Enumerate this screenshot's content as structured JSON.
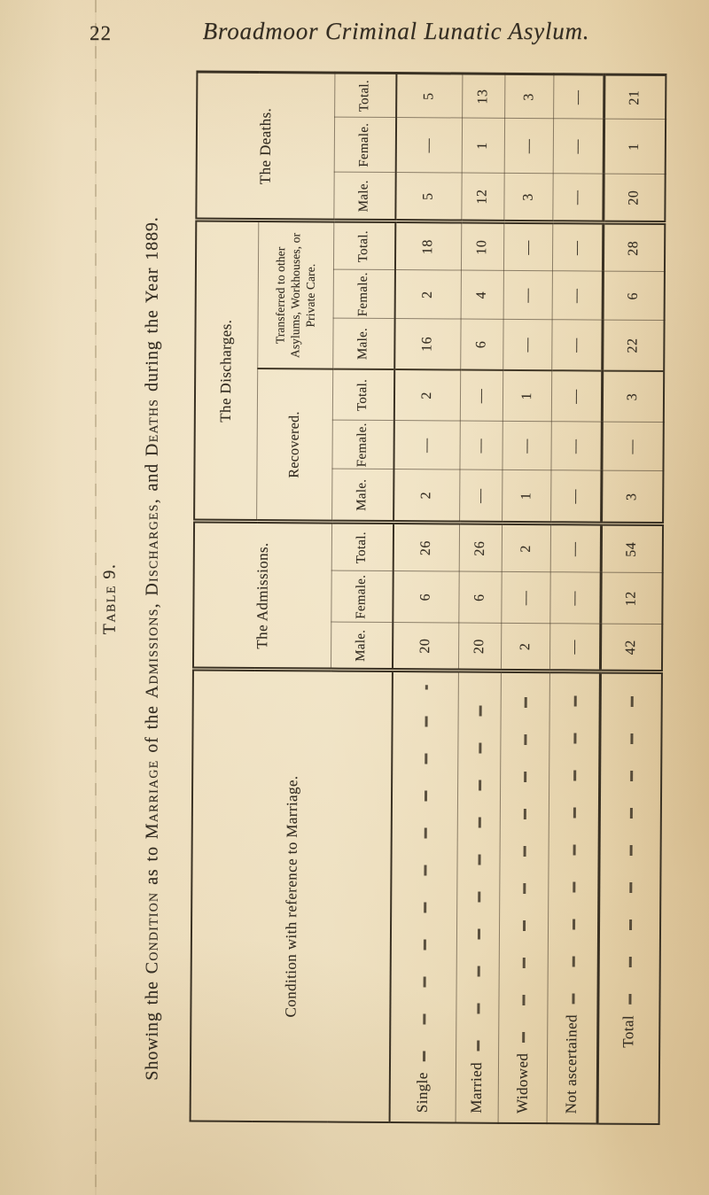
{
  "page": {
    "page_number": "22",
    "running_title": "Broadmoor Criminal Lunatic Asylum.",
    "side_label": "Table 9.",
    "caption_segments": [
      {
        "text": "Showing the ",
        "small_caps": false
      },
      {
        "text": "Condition",
        "small_caps": true
      },
      {
        "text": " as to ",
        "small_caps": false
      },
      {
        "text": "Marriage",
        "small_caps": true
      },
      {
        "text": " of the ",
        "small_caps": false
      },
      {
        "text": "Admissions",
        "small_caps": true
      },
      {
        "text": ", ",
        "small_caps": false
      },
      {
        "text": "Discharges",
        "small_caps": true
      },
      {
        "text": ", and ",
        "small_caps": false
      },
      {
        "text": "Deaths",
        "small_caps": true
      },
      {
        "text": " during the Year 1889.",
        "small_caps": false
      }
    ]
  },
  "table": {
    "stub_header": "Condition with reference to Marriage.",
    "nil_symbol": "—",
    "groups": [
      {
        "label": "The Admissions.",
        "columns": [
          "Male.",
          "Female.",
          "Total."
        ]
      },
      {
        "label": "The Discharges.",
        "subgroups": [
          {
            "label": "Recovered.",
            "columns": [
              "Male.",
              "Female.",
              "Total."
            ]
          },
          {
            "label": "Transferred to other Asylums, Workhouses, or Private Care.",
            "columns": [
              "Male.",
              "Female.",
              "Total."
            ]
          }
        ]
      },
      {
        "label": "The Deaths.",
        "columns": [
          "Male.",
          "Female.",
          "Total."
        ]
      }
    ],
    "rows": [
      {
        "label": "Single",
        "total_row": false,
        "values": [
          "20",
          "6",
          "26",
          "2",
          "—",
          "2",
          "16",
          "2",
          "18",
          "5",
          "—",
          "5"
        ]
      },
      {
        "label": "Married",
        "total_row": false,
        "values": [
          "20",
          "6",
          "26",
          "—",
          "—",
          "—",
          "6",
          "4",
          "10",
          "12",
          "1",
          "13"
        ]
      },
      {
        "label": "Widowed",
        "total_row": false,
        "values": [
          "2",
          "—",
          "2",
          "1",
          "—",
          "1",
          "—",
          "—",
          "—",
          "3",
          "—",
          "3"
        ]
      },
      {
        "label": "Not ascertained",
        "total_row": false,
        "values": [
          "—",
          "—",
          "—",
          "—",
          "—",
          "—",
          "—",
          "—",
          "—",
          "—",
          "—",
          "—"
        ]
      },
      {
        "label": "Total",
        "total_row": true,
        "values": [
          "42",
          "12",
          "54",
          "3",
          "—",
          "3",
          "22",
          "6",
          "28",
          "20",
          "1",
          "21"
        ]
      }
    ]
  }
}
